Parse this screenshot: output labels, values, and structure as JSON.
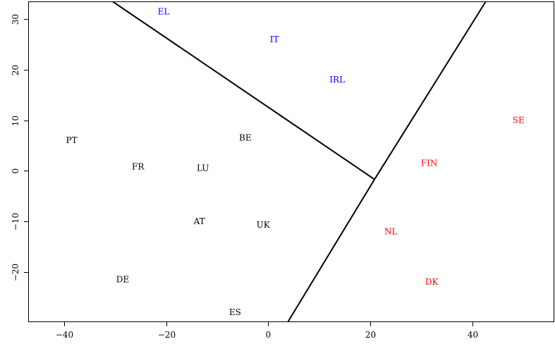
{
  "chart_data": {
    "type": "scatter",
    "title": "",
    "xlabel": "",
    "ylabel": "",
    "xlim": [
      -47,
      56
    ],
    "ylim": [
      -29.8,
      33.5
    ],
    "x_ticks": [
      -40,
      -20,
      0,
      20,
      40
    ],
    "y_ticks": [
      -20,
      -10,
      0,
      10,
      20,
      30
    ],
    "x_tick_labels": [
      "−40",
      "−20",
      "0",
      "20",
      "40"
    ],
    "y_tick_labels": [
      "−20",
      "−10",
      "0",
      "10",
      "20",
      "30"
    ],
    "grid": false,
    "colors": {
      "cluster_black": "#000000",
      "cluster_blue": "#0000ff",
      "cluster_red": "#ff0000"
    },
    "points": [
      {
        "label": "EL",
        "x": -20.5,
        "y": 31.5,
        "color": "#0000ff"
      },
      {
        "label": "IT",
        "x": 1.2,
        "y": 26.0,
        "color": "#0000ff"
      },
      {
        "label": "IRL",
        "x": 13.5,
        "y": 18.0,
        "color": "#0000ff"
      },
      {
        "label": "PT",
        "x": -38.5,
        "y": 6.0,
        "color": "#000000"
      },
      {
        "label": "BE",
        "x": -4.5,
        "y": 6.5,
        "color": "#000000"
      },
      {
        "label": "FR",
        "x": -25.5,
        "y": 0.8,
        "color": "#000000"
      },
      {
        "label": "LU",
        "x": -12.8,
        "y": 0.5,
        "color": "#000000"
      },
      {
        "label": "AT",
        "x": -13.5,
        "y": -10.0,
        "color": "#000000"
      },
      {
        "label": "UK",
        "x": -1.0,
        "y": -10.7,
        "color": "#000000"
      },
      {
        "label": "DE",
        "x": -28.5,
        "y": -21.5,
        "color": "#000000"
      },
      {
        "label": "ES",
        "x": -6.5,
        "y": -28.0,
        "color": "#000000"
      },
      {
        "label": "SE",
        "x": 49.0,
        "y": 10.0,
        "color": "#ff0000"
      },
      {
        "label": "FIN",
        "x": 31.5,
        "y": 1.5,
        "color": "#ff0000"
      },
      {
        "label": "NL",
        "x": 24.0,
        "y": -12.0,
        "color": "#ff0000"
      },
      {
        "label": "DK",
        "x": 32.0,
        "y": -22.0,
        "color": "#ff0000"
      }
    ],
    "boundary_lines": [
      {
        "x": [
          -30.5,
          20.8
        ],
        "y": [
          33.5,
          -1.7
        ]
      },
      {
        "x": [
          3.9,
          20.8
        ],
        "y": [
          -29.8,
          -1.7
        ]
      },
      {
        "x": [
          20.8,
          42.6
        ],
        "y": [
          -1.7,
          33.5
        ]
      }
    ]
  }
}
